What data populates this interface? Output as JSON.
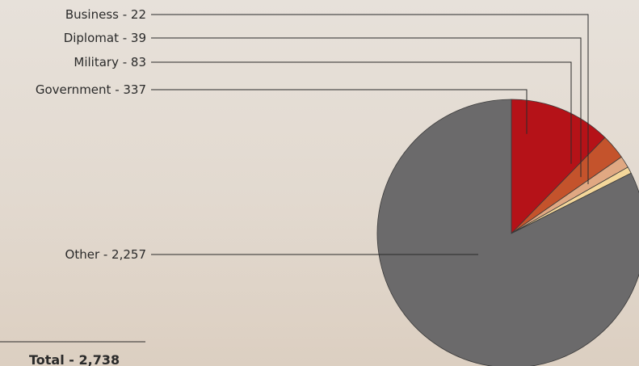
{
  "chart_data": {
    "type": "pie",
    "slices": [
      {
        "label": "Government - 337",
        "value": 337,
        "color": "#b51218"
      },
      {
        "label": "Military - 83",
        "value": 83,
        "color": "#c4532c"
      },
      {
        "label": "Diplomat - 39",
        "value": 39,
        "color": "#e0a882"
      },
      {
        "label": "Business - 22",
        "value": 22,
        "color": "#f4d79a"
      },
      {
        "label": "Other - 2,257",
        "value": 2257,
        "color": "#6b6a6b"
      }
    ],
    "total_label": "Total - 2,738",
    "total": 2738
  }
}
